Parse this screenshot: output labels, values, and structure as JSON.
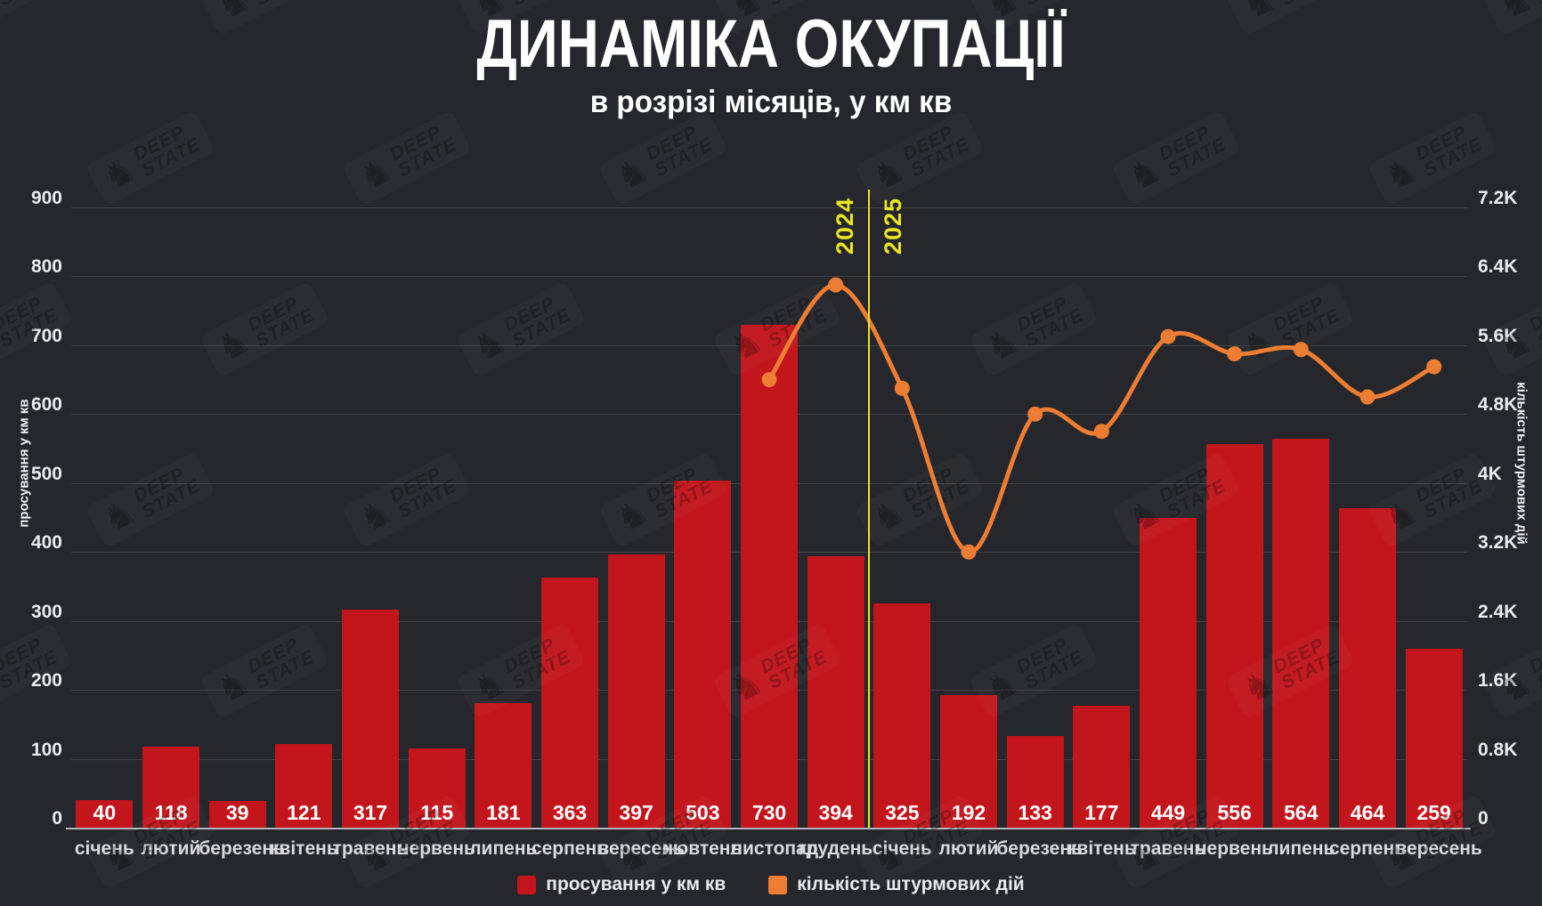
{
  "title": "ДИНАМІКА ОКУПАЦІЇ",
  "subtitle": "в розрізі місяців, у км кв",
  "watermark": {
    "knight_glyph": "♞",
    "line1": "DEEP",
    "line2": "STATE"
  },
  "colors": {
    "background": "#25272c",
    "bar_red": "#c3151c",
    "line_orange": "#ec7d33",
    "divider_yellow": "#e9e425",
    "grid": "rgba(255,255,255,0.13)"
  },
  "chart_data": {
    "type": "bar",
    "combo": "bar+line",
    "title": "ДИНАМІКА ОКУПАЦІЇ — в розрізі місяців, у км кв",
    "categories": [
      "січень",
      "лютий",
      "березень",
      "квітень",
      "травень",
      "червень",
      "липень",
      "серпень",
      "вересень",
      "жовтень",
      "листопад",
      "грудень",
      "січень",
      "лютий",
      "березень",
      "квітень",
      "травень",
      "червень",
      "липень",
      "серпень",
      "вересень"
    ],
    "series": [
      {
        "name": "просування у км кв",
        "type": "bar",
        "axis": "left",
        "color": "#c3151c",
        "values": [
          40,
          118,
          39,
          121,
          317,
          115,
          181,
          363,
          397,
          503,
          730,
          394,
          325,
          192,
          133,
          177,
          449,
          556,
          564,
          464,
          259
        ]
      },
      {
        "name": "кількість штурмових дій",
        "type": "line",
        "axis": "right",
        "color": "#ec7d33",
        "note": "values estimated from gridlines; line starts at листопад 2024",
        "values": [
          null,
          null,
          null,
          null,
          null,
          null,
          null,
          null,
          null,
          null,
          5200,
          6300,
          5100,
          3200,
          4800,
          4600,
          5700,
          5500,
          5550,
          5000,
          5350
        ]
      }
    ],
    "left_axis": {
      "label": "просування у км кв",
      "min": 0,
      "max": 900,
      "step": 100,
      "ticks": [
        "0",
        "100",
        "200",
        "300",
        "400",
        "500",
        "600",
        "700",
        "800",
        "900"
      ]
    },
    "right_axis": {
      "label": "кількість штурмових дій",
      "min": 0,
      "max": 7200,
      "step": 800,
      "ticks": [
        "0",
        "0.8K",
        "1.6K",
        "2.4K",
        "3.2K",
        "4K",
        "4.8K",
        "5.6K",
        "6.4K",
        "7.2K"
      ]
    },
    "divider": {
      "between": [
        "грудень 2024",
        "січень 2025"
      ],
      "left_label": "2024",
      "right_label": "2025",
      "color": "#e9e425"
    },
    "grid": true,
    "legend_position": "bottom-center"
  },
  "legend": [
    {
      "label": "просування у км кв",
      "color": "#c3151c"
    },
    {
      "label": "кількість штурмових дій",
      "color": "#ec7d33"
    }
  ]
}
